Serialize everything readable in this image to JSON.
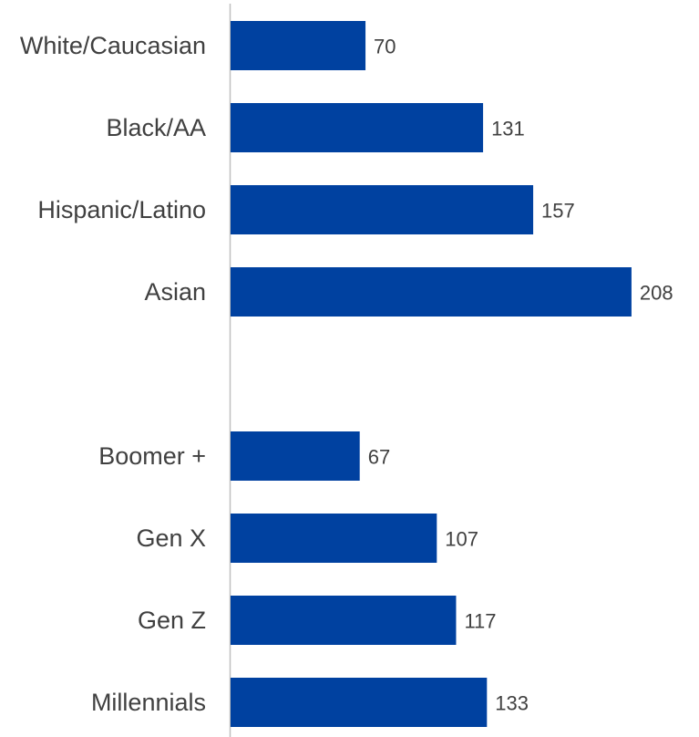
{
  "chart_data": {
    "type": "bar",
    "orientation": "horizontal",
    "categories": [
      "White/Caucasian",
      "Black/AA",
      "Hispanic/Latino",
      "Asian",
      "",
      "Boomer +",
      "Gen X",
      "Gen Z",
      "Millennials"
    ],
    "values": [
      70,
      131,
      157,
      208,
      null,
      67,
      107,
      117,
      133
    ],
    "value_labels": [
      "70",
      "131",
      "157",
      "208",
      "",
      "67",
      "107",
      "117",
      "133"
    ],
    "title": "",
    "xlabel": "",
    "ylabel": "",
    "xlim": [
      0,
      230
    ],
    "grid": false,
    "legend": "none",
    "bar_color": "#0041A0",
    "axis_color": "#bfbfbf"
  }
}
